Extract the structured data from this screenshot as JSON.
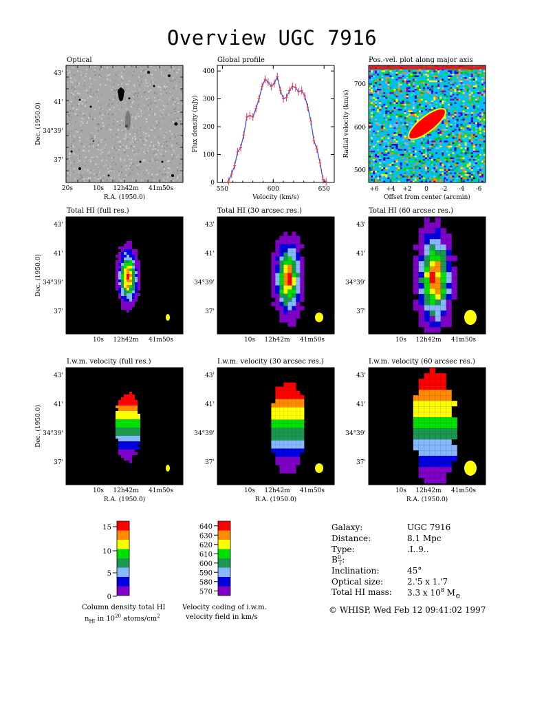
{
  "title": "Overview UGC 7916",
  "panels": {
    "optical": "Optical",
    "global_profile": "Global profile",
    "pv": "Pos.-vel. plot along major axis",
    "hi_full": "Total HI (full res.)",
    "hi_30": "Total HI (30 arcsec res.)",
    "hi_60": "Total HI (60 arcsec res.)",
    "vel_full": "I.w.m. velocity (full res.)",
    "vel_30": "I.w.m. velocity (30 arcsec res.)",
    "vel_60": "I.w.m. velocity (60 arcsec res.)"
  },
  "axes": {
    "dec_label": "Dec. (1950.0)",
    "ra_label": "R.A. (1950.0)",
    "dec_ticks": [
      "43'",
      "41'",
      "34°39'",
      "37'"
    ],
    "ra_ticks_optical": [
      "20s",
      "10s",
      "12h42m",
      "41m50s"
    ],
    "ra_ticks_maps": [
      "10s",
      "12h42m",
      "41m50s"
    ],
    "profile_xlabel": "Velocity (km/s)",
    "profile_ylabel": "Flux density (mJy)",
    "pv_xlabel": "Offset from center (arcmin)",
    "pv_ylabel": "Radial velocity (km/s)"
  },
  "chart_data": [
    {
      "type": "line",
      "title": "Global profile",
      "xlabel": "Velocity (km/s)",
      "ylabel": "Flux density (mJy)",
      "xlim": [
        545,
        660
      ],
      "ylim": [
        0,
        420
      ],
      "xticks": [
        550,
        600,
        650
      ],
      "yticks": [
        0,
        100,
        200,
        300,
        400
      ],
      "x": [
        556,
        559,
        562,
        565,
        568,
        571,
        574,
        577,
        580,
        583,
        586,
        589,
        592,
        595,
        598,
        601,
        604,
        607,
        610,
        613,
        616,
        619,
        622,
        625,
        628,
        631,
        634,
        637,
        640,
        643,
        646,
        649,
        652
      ],
      "y": [
        5,
        30,
        60,
        110,
        125,
        170,
        235,
        240,
        235,
        265,
        300,
        345,
        370,
        360,
        345,
        355,
        380,
        330,
        300,
        305,
        330,
        345,
        340,
        325,
        330,
        310,
        270,
        220,
        150,
        120,
        70,
        10,
        2
      ]
    },
    {
      "type": "heatmap",
      "title": "Pos.-vel. plot along major axis",
      "xlabel": "Offset from center (arcmin)",
      "ylabel": "Radial velocity (km/s)",
      "xticks": [
        "+6",
        "+4",
        "+2",
        "0",
        "-2",
        "-4",
        "-6"
      ],
      "yticks": [
        500,
        600,
        700
      ]
    }
  ],
  "colorbars": {
    "density": {
      "ticks": [
        "15",
        "10",
        "5",
        "0"
      ],
      "caption1": "Column density total HI",
      "caption2": "n",
      "caption2_sub": "HI",
      "caption2_rest": " in 10",
      "caption2_sup": "20",
      "caption2_rest2": " atoms/cm",
      "caption2_sup2": "2"
    },
    "velocity": {
      "ticks": [
        "640",
        "630",
        "620",
        "610",
        "600",
        "590",
        "580",
        "570"
      ],
      "caption1": "Velocity coding of i.w.m.",
      "caption2": "velocity field in km/s"
    },
    "colors": [
      "#ff0000",
      "#ff8c00",
      "#ffff00",
      "#00e000",
      "#1a9850",
      "#87b7ff",
      "#0000e0",
      "#8000c8"
    ]
  },
  "info": {
    "rows": [
      {
        "key": "Galaxy:",
        "value": "UGC 7916"
      },
      {
        "key": "Distance:",
        "value": "8.1 Mpc"
      },
      {
        "key": "Type:",
        "value": ".I..9.."
      },
      {
        "key": "B",
        "value": ""
      },
      {
        "key": "Inclination:",
        "value": "45°"
      },
      {
        "key": "Optical size:",
        "value": "2.'5 x 1.'7"
      },
      {
        "key": "Total HI mass:",
        "value": "3.3 x 10"
      }
    ],
    "bt_sup": "0",
    "bt_sub": "T",
    "bt_colon": ":",
    "mass_exp": "8",
    "mass_unit": " M",
    "mass_sun": "⊙",
    "footer": "© WHISP, Wed Feb 12 09:41:02 1997"
  },
  "colors": {
    "background": "#000000",
    "beam": "#ffff00",
    "profile_line": "#3050ff",
    "profile_err": "#ff3030"
  }
}
